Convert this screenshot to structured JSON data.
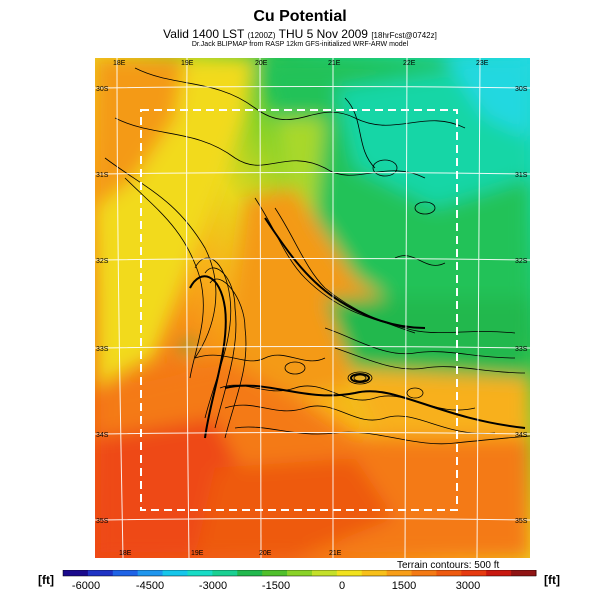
{
  "title": "Cu Potential",
  "subtitle": {
    "main": "Valid 1400 LST",
    "small1": "(1200Z)",
    "main2": "THU 5 Nov 2009",
    "small2": "[18hrFcst@0742z]"
  },
  "credit": "Dr.Jack BLIPMAP from RASP 12km GFS-initialized WRF-ARW model",
  "top_lon_labels": [
    "18E",
    "19E",
    "20E",
    "21E",
    "22E",
    "23E"
  ],
  "bottom_lon_labels": [
    "18E",
    "19E",
    "20E",
    "21E"
  ],
  "left_lat_labels": [
    "30S",
    "31S",
    "32S",
    "33S",
    "34S",
    "35S"
  ],
  "right_lat_labels": [
    "30S",
    "31S",
    "32S",
    "33S",
    "34S",
    "35S"
  ],
  "terrain_note": "Terrain contours: 500 ft",
  "colorbar": {
    "unit_left": "[ft]",
    "unit_right": "[ft]",
    "ticks": [
      "-6000",
      "-4500",
      "-3000",
      "-1500",
      "0",
      "1500",
      "3000"
    ],
    "colors": [
      "#1a0a8c",
      "#1f33c4",
      "#1f63e6",
      "#1f96ee",
      "#16c6ea",
      "#18dcc6",
      "#1ad092",
      "#22b84e",
      "#50c02c",
      "#8ad228",
      "#c4e02a",
      "#f2e21e",
      "#f8c01a",
      "#f89e18",
      "#f47a14",
      "#ee5a10",
      "#e63a10",
      "#c81810",
      "#901414"
    ]
  },
  "map_colors": {
    "cyan": "#22d8e0",
    "teal": "#18d6a6",
    "green": "#22c258",
    "lime": "#a8d82a",
    "yellow": "#f2da1c",
    "orange": "#f49a16",
    "red": "#ee4812"
  }
}
